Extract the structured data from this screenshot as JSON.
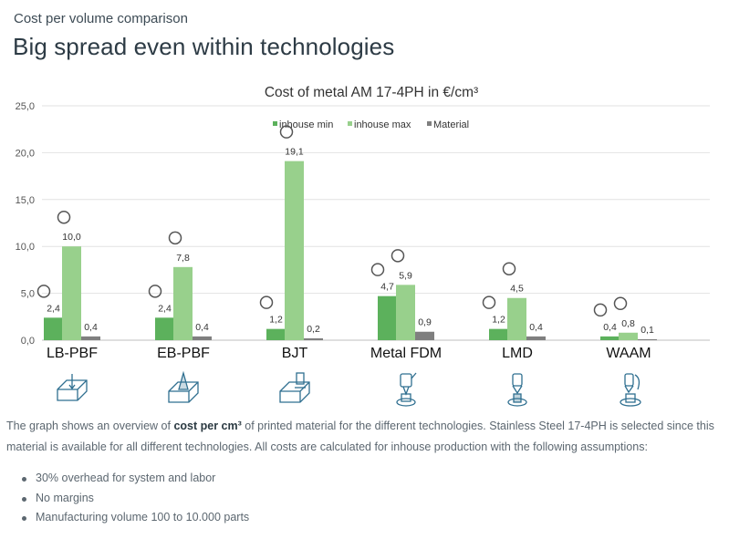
{
  "page": {
    "subtitle": "Cost per volume comparison",
    "heading": "Big spread even within technologies"
  },
  "description": {
    "text_before": "The graph shows an overview of ",
    "bold": "cost per cm³",
    "text_after": " of printed material for the different technologies. Stainless Steel 17-4PH is selected since this material is available for all different technologies. All costs are calculated for inhouse production with the following assumptions:"
  },
  "bullets": [
    "30% overhead for system and labor",
    "No margins",
    "Manufacturing volume 100 to 10.000 parts"
  ],
  "colors": {
    "inhouse_min": "#5cb15c",
    "inhouse_max": "#98d08c",
    "material": "#7f7f7f",
    "icon": "#2f6f90"
  },
  "chart_data": {
    "type": "bar",
    "title": "Cost of metal AM 17-4PH in €/cm³",
    "xlabel": "",
    "ylabel": "",
    "ylim": [
      0,
      25
    ],
    "yticks": [
      "0,0",
      "5,0",
      "10,0",
      "15,0",
      "20,0",
      "25,0"
    ],
    "grid": true,
    "legend_position": "top-right",
    "categories": [
      "LB-PBF",
      "EB-PBF",
      "BJT",
      "Metal FDM",
      "LMD",
      "WAAM"
    ],
    "series": [
      {
        "name": "inhouse min",
        "color": "#5cb15c",
        "values": [
          2.4,
          2.4,
          1.2,
          4.7,
          1.2,
          0.4
        ],
        "labels": [
          "2,4",
          "2,4",
          "1,2",
          "4,7",
          "1,2",
          "0,4"
        ]
      },
      {
        "name": "inhouse max",
        "color": "#98d08c",
        "values": [
          10.0,
          7.8,
          19.1,
          5.9,
          4.5,
          0.8
        ],
        "labels": [
          "10,0",
          "7,8",
          "19,1",
          "5,9",
          "4,5",
          "0,8"
        ]
      },
      {
        "name": "Material",
        "color": "#7f7f7f",
        "values": [
          0.4,
          0.4,
          0.2,
          0.9,
          0.4,
          0.1
        ],
        "labels": [
          "0,4",
          "0,4",
          "0,2",
          "0,9",
          "0,4",
          "0,1"
        ]
      }
    ],
    "icons": [
      "lb-pbf-icon",
      "eb-pbf-icon",
      "bjt-icon",
      "metal-fdm-icon",
      "lmd-icon",
      "waam-icon"
    ]
  }
}
